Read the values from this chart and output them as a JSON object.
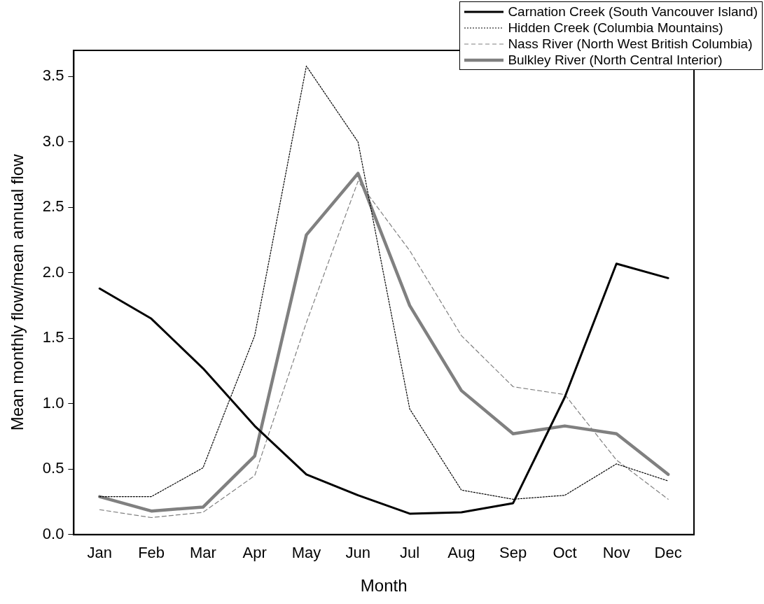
{
  "chart_data": {
    "type": "line",
    "xlabel": "Month",
    "ylabel": "Mean monthly flow/mean annual flow",
    "categories": [
      "Jan",
      "Feb",
      "Mar",
      "Apr",
      "May",
      "Jun",
      "Jul",
      "Aug",
      "Sep",
      "Oct",
      "Nov",
      "Dec"
    ],
    "series": [
      {
        "name": "Carnation Creek (South Vancouver Island)",
        "color": "#000000",
        "line_style": "solid",
        "values": [
          1.88,
          1.65,
          1.27,
          0.83,
          0.46,
          0.3,
          0.16,
          0.17,
          0.24,
          1.05,
          2.07,
          1.96
        ]
      },
      {
        "name": "Hidden Creek (Columbia Mountains)",
        "color": "#000000",
        "line_style": "dotted",
        "values": [
          0.29,
          0.29,
          0.51,
          1.52,
          3.58,
          3.0,
          0.96,
          0.34,
          0.27,
          0.3,
          0.54,
          0.41
        ]
      },
      {
        "name": "Nass River (North West British Columbia)",
        "color": "#808080",
        "line_style": "dashed",
        "values": [
          0.19,
          0.13,
          0.17,
          0.45,
          1.62,
          2.7,
          2.17,
          1.52,
          1.13,
          1.07,
          0.57,
          0.27
        ]
      },
      {
        "name": "Bulkley River (North Central Interior)",
        "color": "#808080",
        "line_style": "solid",
        "values": [
          0.29,
          0.18,
          0.21,
          0.6,
          2.29,
          2.76,
          1.75,
          1.1,
          0.77,
          0.83,
          0.77,
          0.46
        ]
      }
    ],
    "ylim": [
      0,
      3.7
    ],
    "yticks": [
      {
        "value": 0,
        "label": "0.0"
      },
      {
        "value": 0.5,
        "label": "0.5"
      },
      {
        "value": 1,
        "label": "1.0"
      },
      {
        "value": 1.5,
        "label": "1.5"
      },
      {
        "value": 2,
        "label": "2.0"
      },
      {
        "value": 2.5,
        "label": "2.5"
      },
      {
        "value": 3,
        "label": "3.0"
      },
      {
        "value": 3.5,
        "label": "3.5"
      }
    ],
    "grid": false,
    "legend": "top right",
    "marker": "none"
  }
}
